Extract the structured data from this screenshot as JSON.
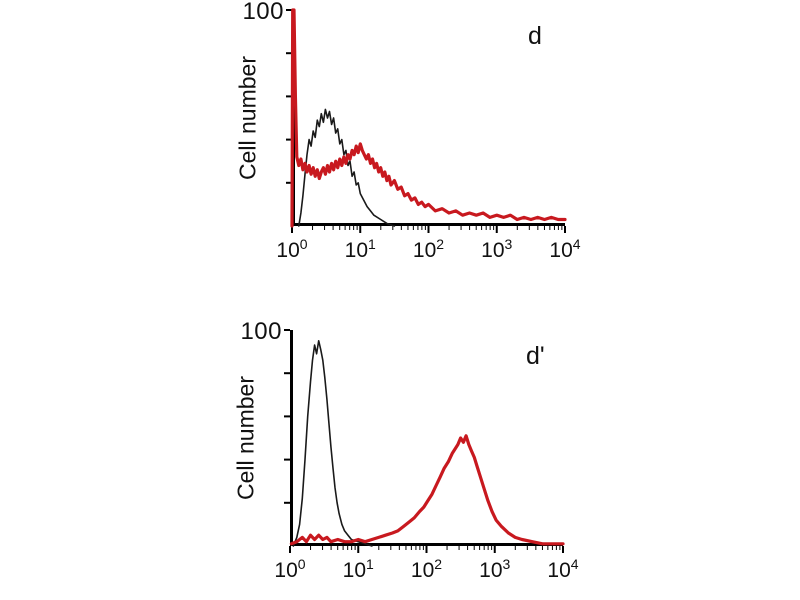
{
  "figure_background": "#ffffff",
  "axis_color": "#000000",
  "chart_data": [
    {
      "type": "line",
      "subtype": "flow-cytometry-histogram",
      "panel_label": "d",
      "title": "",
      "xlabel": "",
      "ylabel": "Cell number",
      "x_scale": "log10",
      "xlim_log10": [
        0,
        4
      ],
      "x_tick_labels": [
        "10^0",
        "10^1",
        "10^2",
        "10^3",
        "10^4"
      ],
      "ylim": [
        0,
        100
      ],
      "y_tick_labels": [
        "100"
      ],
      "grid": false,
      "legend": null,
      "series": [
        {
          "name": "control-thin-black",
          "color": "#1a1a1a",
          "stroke_width": 1.6,
          "points_log10x_y": [
            [
              0.1,
              0
            ],
            [
              0.13,
              6
            ],
            [
              0.16,
              14
            ],
            [
              0.19,
              24
            ],
            [
              0.22,
              33
            ],
            [
              0.25,
              40
            ],
            [
              0.28,
              37
            ],
            [
              0.31,
              44
            ],
            [
              0.34,
              41
            ],
            [
              0.37,
              49
            ],
            [
              0.4,
              46
            ],
            [
              0.43,
              52
            ],
            [
              0.46,
              48
            ],
            [
              0.49,
              54
            ],
            [
              0.52,
              50
            ],
            [
              0.55,
              53
            ],
            [
              0.58,
              47
            ],
            [
              0.61,
              50
            ],
            [
              0.64,
              43
            ],
            [
              0.67,
              45
            ],
            [
              0.7,
              38
            ],
            [
              0.73,
              40
            ],
            [
              0.76,
              33
            ],
            [
              0.79,
              35
            ],
            [
              0.82,
              28
            ],
            [
              0.85,
              30
            ],
            [
              0.88,
              23
            ],
            [
              0.91,
              25
            ],
            [
              0.94,
              19
            ],
            [
              0.97,
              20
            ],
            [
              1.0,
              15
            ],
            [
              1.05,
              12
            ],
            [
              1.1,
              9
            ],
            [
              1.15,
              7
            ],
            [
              1.2,
              5
            ],
            [
              1.3,
              3
            ],
            [
              1.4,
              1
            ],
            [
              1.5,
              0
            ]
          ]
        },
        {
          "name": "stained-thick-red",
          "color": "#c8191f",
          "stroke_width": 3.2,
          "points_log10x_y": [
            [
              0.0,
              0
            ],
            [
              0.01,
              100
            ],
            [
              0.03,
              100
            ],
            [
              0.05,
              60
            ],
            [
              0.07,
              32
            ],
            [
              0.1,
              28
            ],
            [
              0.13,
              31
            ],
            [
              0.16,
              26
            ],
            [
              0.19,
              29
            ],
            [
              0.22,
              25
            ],
            [
              0.25,
              28
            ],
            [
              0.28,
              24
            ],
            [
              0.31,
              27
            ],
            [
              0.34,
              23
            ],
            [
              0.37,
              26
            ],
            [
              0.4,
              22
            ],
            [
              0.43,
              25
            ],
            [
              0.46,
              27
            ],
            [
              0.49,
              24
            ],
            [
              0.52,
              28
            ],
            [
              0.55,
              25
            ],
            [
              0.58,
              29
            ],
            [
              0.61,
              26
            ],
            [
              0.64,
              30
            ],
            [
              0.67,
              27
            ],
            [
              0.7,
              31
            ],
            [
              0.73,
              28
            ],
            [
              0.76,
              32
            ],
            [
              0.79,
              29
            ],
            [
              0.82,
              33
            ],
            [
              0.85,
              31
            ],
            [
              0.88,
              35
            ],
            [
              0.91,
              33
            ],
            [
              0.94,
              37
            ],
            [
              0.97,
              34
            ],
            [
              1.0,
              38
            ],
            [
              1.03,
              35
            ],
            [
              1.06,
              33
            ],
            [
              1.09,
              31
            ],
            [
              1.12,
              33
            ],
            [
              1.15,
              29
            ],
            [
              1.18,
              31
            ],
            [
              1.21,
              27
            ],
            [
              1.24,
              29
            ],
            [
              1.27,
              25
            ],
            [
              1.3,
              27
            ],
            [
              1.33,
              23
            ],
            [
              1.36,
              25
            ],
            [
              1.39,
              21
            ],
            [
              1.42,
              23
            ],
            [
              1.45,
              19
            ],
            [
              1.5,
              21
            ],
            [
              1.55,
              17
            ],
            [
              1.6,
              18
            ],
            [
              1.65,
              14
            ],
            [
              1.7,
              15
            ],
            [
              1.75,
              12
            ],
            [
              1.8,
              13
            ],
            [
              1.85,
              10
            ],
            [
              1.9,
              11
            ],
            [
              1.95,
              9
            ],
            [
              2.0,
              10
            ],
            [
              2.1,
              7
            ],
            [
              2.2,
              8
            ],
            [
              2.3,
              6
            ],
            [
              2.4,
              7
            ],
            [
              2.5,
              5
            ],
            [
              2.6,
              6
            ],
            [
              2.7,
              5
            ],
            [
              2.8,
              6
            ],
            [
              2.9,
              4
            ],
            [
              3.0,
              5
            ],
            [
              3.1,
              4
            ],
            [
              3.2,
              5
            ],
            [
              3.3,
              3
            ],
            [
              3.4,
              4
            ],
            [
              3.5,
              3
            ],
            [
              3.6,
              4
            ],
            [
              3.7,
              3
            ],
            [
              3.8,
              4
            ],
            [
              3.9,
              3
            ],
            [
              4.0,
              3
            ]
          ]
        }
      ]
    },
    {
      "type": "line",
      "subtype": "flow-cytometry-histogram",
      "panel_label": "d'",
      "title": "",
      "xlabel": "",
      "ylabel": "Cell number",
      "x_scale": "log10",
      "xlim_log10": [
        0,
        4
      ],
      "x_tick_labels": [
        "10^0",
        "10^1",
        "10^2",
        "10^3",
        "10^4"
      ],
      "ylim": [
        0,
        100
      ],
      "y_tick_labels": [
        "100"
      ],
      "grid": false,
      "legend": null,
      "series": [
        {
          "name": "control-thin-black",
          "color": "#1a1a1a",
          "stroke_width": 1.6,
          "points_log10x_y": [
            [
              0.05,
              0
            ],
            [
              0.1,
              4
            ],
            [
              0.14,
              10
            ],
            [
              0.18,
              22
            ],
            [
              0.22,
              40
            ],
            [
              0.26,
              60
            ],
            [
              0.3,
              76
            ],
            [
              0.33,
              86
            ],
            [
              0.36,
              93
            ],
            [
              0.39,
              89
            ],
            [
              0.42,
              95
            ],
            [
              0.45,
              91
            ],
            [
              0.48,
              86
            ],
            [
              0.51,
              78
            ],
            [
              0.54,
              68
            ],
            [
              0.57,
              57
            ],
            [
              0.6,
              46
            ],
            [
              0.63,
              36
            ],
            [
              0.66,
              27
            ],
            [
              0.69,
              20
            ],
            [
              0.72,
              15
            ],
            [
              0.76,
              10
            ],
            [
              0.8,
              7
            ],
            [
              0.85,
              5
            ],
            [
              0.9,
              3
            ],
            [
              1.0,
              2
            ],
            [
              1.1,
              1
            ],
            [
              1.2,
              0
            ]
          ]
        },
        {
          "name": "stained-thick-red",
          "color": "#c8191f",
          "stroke_width": 3.2,
          "points_log10x_y": [
            [
              0.02,
              1
            ],
            [
              0.1,
              2
            ],
            [
              0.18,
              4
            ],
            [
              0.24,
              2
            ],
            [
              0.3,
              5
            ],
            [
              0.36,
              3
            ],
            [
              0.42,
              5
            ],
            [
              0.48,
              3
            ],
            [
              0.54,
              4
            ],
            [
              0.6,
              2
            ],
            [
              0.7,
              3
            ],
            [
              0.8,
              2
            ],
            [
              0.9,
              2
            ],
            [
              1.0,
              3
            ],
            [
              1.1,
              2
            ],
            [
              1.2,
              3
            ],
            [
              1.3,
              4
            ],
            [
              1.4,
              5
            ],
            [
              1.5,
              6
            ],
            [
              1.58,
              7
            ],
            [
              1.66,
              9
            ],
            [
              1.74,
              11
            ],
            [
              1.82,
              13
            ],
            [
              1.9,
              16
            ],
            [
              1.96,
              18
            ],
            [
              2.02,
              21
            ],
            [
              2.08,
              24
            ],
            [
              2.14,
              28
            ],
            [
              2.2,
              32
            ],
            [
              2.26,
              36
            ],
            [
              2.32,
              39
            ],
            [
              2.38,
              43
            ],
            [
              2.42,
              45
            ],
            [
              2.46,
              47
            ],
            [
              2.5,
              50
            ],
            [
              2.54,
              48
            ],
            [
              2.58,
              51
            ],
            [
              2.62,
              47
            ],
            [
              2.66,
              44
            ],
            [
              2.7,
              41
            ],
            [
              2.74,
              37
            ],
            [
              2.78,
              33
            ],
            [
              2.84,
              27
            ],
            [
              2.9,
              21
            ],
            [
              2.96,
              16
            ],
            [
              3.02,
              12
            ],
            [
              3.1,
              9
            ],
            [
              3.2,
              6
            ],
            [
              3.3,
              4
            ],
            [
              3.4,
              3
            ],
            [
              3.55,
              2
            ],
            [
              3.7,
              1
            ],
            [
              3.85,
              1
            ],
            [
              4.0,
              1
            ]
          ]
        }
      ]
    }
  ]
}
